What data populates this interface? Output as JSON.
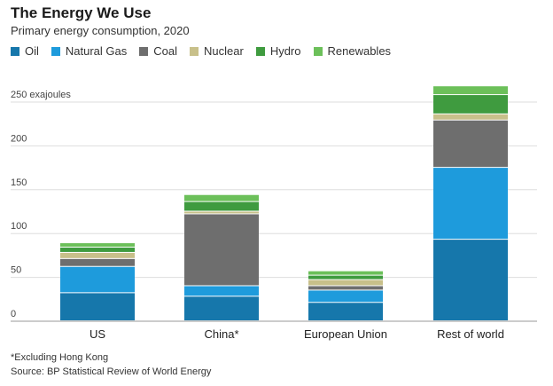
{
  "title": "The Energy We Use",
  "subtitle": "Primary energy consumption, 2020",
  "footnote": "*Excluding Hong Kong",
  "source": "Source: BP Statistical Review of World Energy",
  "colors": {
    "Oil": "#1677ab",
    "Natural Gas": "#1e9bdc",
    "Coal": "#6e6e6e",
    "Nuclear": "#c8c08a",
    "Hydro": "#3f9b3f",
    "Renewables": "#6cc05a"
  },
  "chart_data": {
    "type": "bar",
    "stacked": true,
    "categories": [
      "US",
      "China*",
      "European Union",
      "Rest of world"
    ],
    "series": [
      {
        "name": "Oil",
        "values": [
          32,
          28,
          21,
          93
        ]
      },
      {
        "name": "Natural Gas",
        "values": [
          30,
          12,
          14,
          82
        ]
      },
      {
        "name": "Coal",
        "values": [
          9,
          82,
          5,
          54
        ]
      },
      {
        "name": "Nuclear",
        "values": [
          7,
          3,
          7,
          7
        ]
      },
      {
        "name": "Hydro",
        "values": [
          6,
          11,
          5,
          22
        ]
      },
      {
        "name": "Renewables",
        "values": [
          5,
          8,
          5,
          10
        ]
      }
    ],
    "yticks": [
      0,
      50,
      100,
      150,
      200,
      250
    ],
    "ytick_labels": [
      "0",
      "50",
      "100",
      "150",
      "200",
      "250 exajoules"
    ],
    "ylim": [
      0,
      260
    ],
    "grid": true,
    "legend_position": "top-left"
  }
}
